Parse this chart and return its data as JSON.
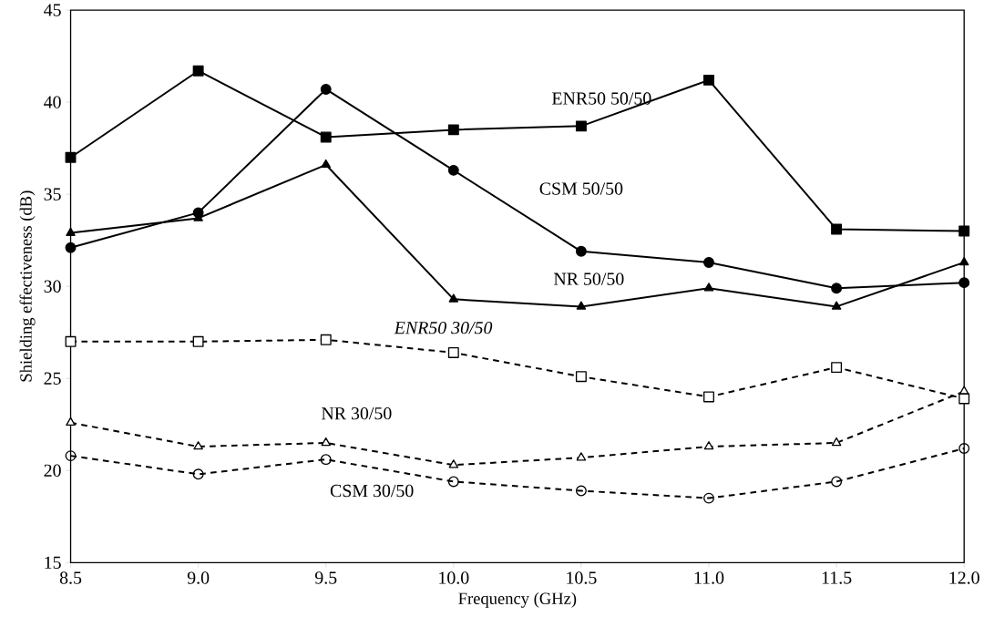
{
  "chart_data": {
    "type": "line",
    "xlabel": "Frequency (GHz)",
    "ylabel": "Shielding effectiveness (dB)",
    "x": [
      8.5,
      9.0,
      9.5,
      10.0,
      10.5,
      11.0,
      11.5,
      12.0
    ],
    "xlim": [
      8.5,
      12.0
    ],
    "ylim": [
      15,
      45
    ],
    "xticks": [
      {
        "value": 8.5,
        "label": "8.5"
      },
      {
        "value": 9.0,
        "label": "9.0"
      },
      {
        "value": 9.5,
        "label": "9.5"
      },
      {
        "value": 10.0,
        "label": "10.0"
      },
      {
        "value": 10.5,
        "label": "10.5"
      },
      {
        "value": 11.0,
        "label": "11.0"
      },
      {
        "value": 11.5,
        "label": "11.5"
      },
      {
        "value": 12.0,
        "label": "12.0"
      }
    ],
    "yticks": [
      15,
      20,
      25,
      30,
      35,
      40,
      45
    ],
    "grid": false,
    "legend": false,
    "series": [
      {
        "name": "ENR50 50/50",
        "color": "#000000",
        "marker": "square",
        "line_style": "solid",
        "values": [
          37.0,
          41.7,
          38.1,
          38.5,
          38.7,
          41.2,
          33.1,
          33.0
        ]
      },
      {
        "name": "CSM 50/50",
        "color": "#000000",
        "marker": "circle",
        "line_style": "solid",
        "values": [
          32.1,
          34.0,
          40.7,
          36.3,
          31.9,
          31.3,
          29.9,
          30.2
        ]
      },
      {
        "name": "NR 50/50",
        "color": "#000000",
        "marker": "triangle",
        "line_style": "solid",
        "values": [
          32.9,
          33.7,
          36.6,
          29.3,
          28.9,
          29.9,
          28.9,
          31.3
        ]
      },
      {
        "name": "ENR50 30/50",
        "color": "#000000",
        "marker": "square",
        "line_style": "dashed",
        "values": [
          27.0,
          27.0,
          27.1,
          26.4,
          25.1,
          24.0,
          25.6,
          23.9
        ]
      },
      {
        "name": "NR 30/50",
        "color": "#000000",
        "marker": "triangle",
        "line_style": "dashed",
        "values": [
          22.6,
          21.3,
          21.5,
          20.3,
          20.7,
          21.3,
          21.5,
          24.3
        ]
      },
      {
        "name": "CSM 30/50",
        "color": "#000000",
        "marker": "circle",
        "line_style": "dashed",
        "values": [
          20.8,
          19.8,
          20.6,
          19.4,
          18.9,
          18.5,
          19.4,
          21.2
        ]
      }
    ]
  }
}
